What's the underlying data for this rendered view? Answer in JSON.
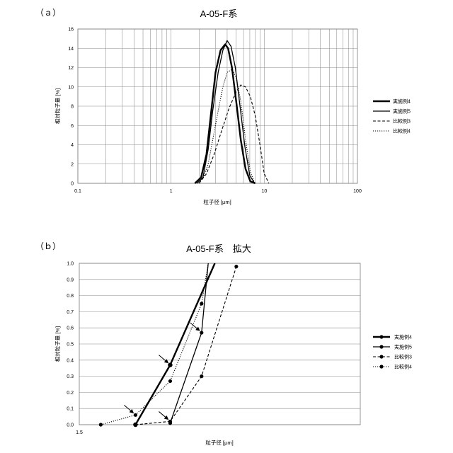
{
  "chart_data": [
    {
      "panel": "（ａ）",
      "type": "line",
      "title": "A-05-F系",
      "xlabel": "粒子径 [μm]",
      "ylabel": "相対粒子量 [%]",
      "xscale": "log",
      "xlim": [
        0.1,
        100
      ],
      "ylim": [
        0,
        16
      ],
      "xticks": [
        "0.1",
        "1",
        "10",
        "100"
      ],
      "yticks": [
        "0",
        "2",
        "4",
        "6",
        "8",
        "10",
        "12",
        "14",
        "16"
      ],
      "grid": true,
      "legend": "right",
      "series": [
        {
          "name": "実施例4",
          "style": "thick-solid",
          "x": [
            1.8,
            2.1,
            2.4,
            2.7,
            3.0,
            3.4,
            3.8,
            4.1,
            4.5,
            5.0,
            5.6,
            6.3,
            7.1,
            8.0
          ],
          "y": [
            0,
            0.6,
            3.0,
            7.5,
            11.5,
            13.8,
            14.4,
            14.0,
            12.0,
            8.5,
            4.5,
            1.5,
            0.2,
            0
          ]
        },
        {
          "name": "実施例5",
          "style": "solid",
          "x": [
            1.9,
            2.2,
            2.5,
            2.8,
            3.2,
            3.6,
            4.0,
            4.4,
            4.9,
            5.5,
            6.2,
            7.0,
            7.9
          ],
          "y": [
            0,
            0.6,
            3.5,
            7.5,
            11.5,
            13.8,
            14.8,
            14.2,
            12.0,
            8.0,
            3.8,
            0.8,
            0
          ]
        },
        {
          "name": "比較例3",
          "style": "dashed",
          "x": [
            2.0,
            2.4,
            2.9,
            3.5,
            4.2,
            5.0,
            5.6,
            6.3,
            7.1,
            8.0,
            9.0,
            10.0,
            11.2
          ],
          "y": [
            0,
            1.0,
            3.0,
            5.5,
            7.8,
            9.5,
            10.2,
            10.0,
            9.0,
            7.0,
            4.0,
            1.0,
            0
          ]
        },
        {
          "name": "比較例4",
          "style": "dotted",
          "x": [
            1.9,
            2.2,
            2.5,
            2.8,
            3.2,
            3.6,
            4.0,
            4.5,
            5.0,
            5.6,
            6.3,
            7.1,
            7.9
          ],
          "y": [
            0,
            0.5,
            2.0,
            4.5,
            7.5,
            10.0,
            11.5,
            11.8,
            11.0,
            8.5,
            4.5,
            1.2,
            0
          ]
        }
      ]
    },
    {
      "panel": "（ｂ）",
      "type": "line",
      "title": "A-05-F系　拡大",
      "xlabel": "粒子径 [μm]",
      "ylabel": "相対粒子量 [%]",
      "xlim": [
        1.5,
        3.2
      ],
      "ylim": [
        0,
        1.0
      ],
      "xticks": [
        "1.5"
      ],
      "yticks": [
        "0.0",
        "0.1",
        "0.2",
        "0.3",
        "0.4",
        "0.5",
        "0.6",
        "0.7",
        "0.8",
        "0.9",
        "1.0"
      ],
      "grid": true,
      "legend": "right",
      "series": [
        {
          "name": "実施例4",
          "style": "thick-solid",
          "x": [
            1.84,
            2.05,
            2.32
          ],
          "y": [
            0,
            0.37,
            1.0
          ],
          "markers": [
            true,
            true,
            false
          ]
        },
        {
          "name": "実施例5",
          "style": "solid",
          "x": [
            2.05,
            2.24,
            2.28
          ],
          "y": [
            0.01,
            0.57,
            1.0
          ],
          "markers": [
            true,
            true,
            false
          ]
        },
        {
          "name": "比較例3",
          "style": "dashed",
          "x": [
            1.84,
            2.05,
            2.24,
            2.45
          ],
          "y": [
            0,
            0.02,
            0.3,
            0.98
          ],
          "markers": [
            true,
            true,
            true,
            true
          ]
        },
        {
          "name": "比較例4",
          "style": "dotted",
          "x": [
            1.63,
            1.84,
            2.05,
            2.24,
            2.28
          ],
          "y": [
            0,
            0.06,
            0.27,
            0.75,
            1.0
          ],
          "markers": [
            true,
            true,
            true,
            true,
            false
          ]
        }
      ],
      "arrows": [
        {
          "x": 1.84,
          "y": 0.06
        },
        {
          "x": 2.05,
          "y": 0.37
        },
        {
          "x": 2.05,
          "y": 0.02
        },
        {
          "x": 2.24,
          "y": 0.57
        }
      ]
    }
  ]
}
